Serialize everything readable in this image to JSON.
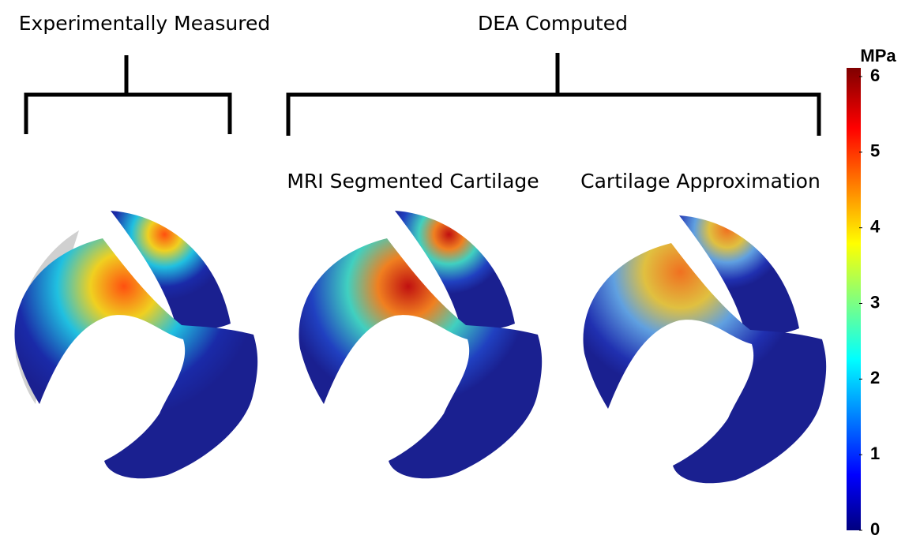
{
  "header": {
    "left_title": "Experimentally Measured",
    "right_title": "DEA Computed"
  },
  "subheaders": [
    "MRI Segmented Cartilage",
    "Cartilage Approximation"
  ],
  "colorbar": {
    "unit": "MPa",
    "lim": [
      0,
      6
    ],
    "ticks": [
      0,
      1,
      2,
      3,
      4,
      5,
      6
    ]
  }
}
